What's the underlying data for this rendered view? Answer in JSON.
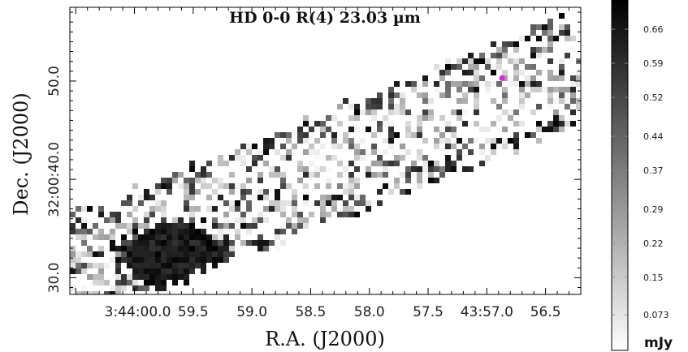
{
  "chart_data": {
    "type": "heatmap",
    "title": "HD 0-0 R(4) 23.03 µm",
    "xlabel": "R.A. (J2000)",
    "ylabel": "Dec. (J2000)",
    "x_ticks": [
      {
        "label": "3:44:00.0",
        "ra_sec": 60.0
      },
      {
        "label": "59.5",
        "ra_sec": 59.5
      },
      {
        "label": "59.0",
        "ra_sec": 59.0
      },
      {
        "label": "58.5",
        "ra_sec": 58.5
      },
      {
        "label": "58.0",
        "ra_sec": 58.0
      },
      {
        "label": "57.5",
        "ra_sec": 57.5
      },
      {
        "label": "43:57.0",
        "ra_sec": 57.0
      },
      {
        "label": "56.5",
        "ra_sec": 56.5
      }
    ],
    "y_ticks": [
      {
        "label": "30.0",
        "dec_arcsec": 30
      },
      {
        "label": "32:00:40.0",
        "dec_arcsec": 40
      },
      {
        "label": "50.0",
        "dec_arcsec": 50
      }
    ],
    "xlim": [
      60.55,
      56.2
    ],
    "ylim": [
      28.3,
      57.5
    ],
    "colorbar": {
      "unit": "mJy",
      "ticks": [
        "0.073",
        "0.15",
        "0.22",
        "0.29",
        "0.37",
        "0.44",
        "0.52",
        "0.59",
        "0.66"
      ],
      "range": [
        0,
        0.72
      ],
      "cmap": "white-to-black"
    },
    "marker": {
      "ra_sec": 56.87,
      "dec_arcsec": 50.3,
      "color": "#e020e0"
    },
    "band": {
      "description_free": true,
      "start": [
        60.45,
        31.0
      ],
      "end": [
        56.3,
        51.0
      ],
      "half_width_arcsec": 7.0
    },
    "bright_clump": {
      "ra_sec": 59.65,
      "dec_arcsec": 32.0
    }
  },
  "colors": {
    "frame": "#000000",
    "background": "#ffffff",
    "marker": "#e020e0"
  }
}
